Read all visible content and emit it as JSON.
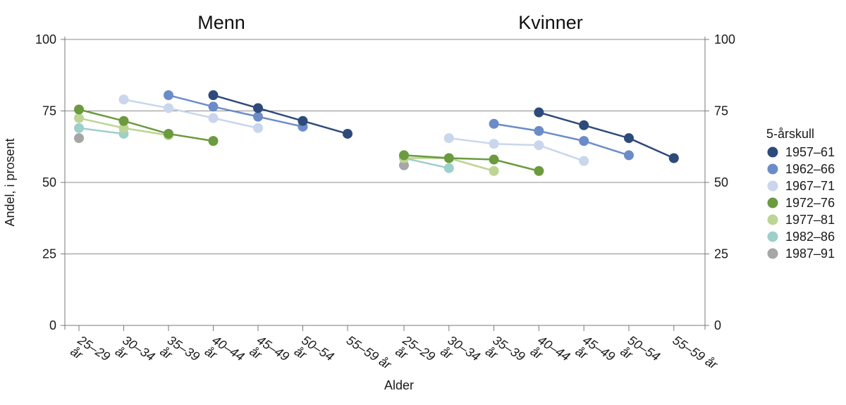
{
  "chart_data": {
    "type": "line",
    "panels": [
      {
        "title": "Menn"
      },
      {
        "title": "Kvinner"
      }
    ],
    "categories": [
      "25–29 år",
      "30–34 år",
      "35–39 år",
      "40–44 år",
      "45–49 år",
      "50–54 år",
      "55–59 år"
    ],
    "category_lines": [
      [
        "25–29",
        "år"
      ],
      [
        "30–34",
        "år"
      ],
      [
        "35–39",
        "år"
      ],
      [
        "40–44",
        "år"
      ],
      [
        "45–49",
        "år"
      ],
      [
        "50–54",
        "år"
      ],
      [
        "55–59 år",
        ""
      ]
    ],
    "xlabel": "Alder",
    "ylabel": "Andel, i prosent",
    "ylim": [
      0,
      100
    ],
    "yticks": [
      0,
      25,
      50,
      75,
      100
    ],
    "grid": true,
    "legend": {
      "title": "5-årskull",
      "position": "right"
    },
    "series": [
      {
        "name": "1957–61",
        "color": "#2d4a7a",
        "menn": [
          null,
          null,
          null,
          80.5,
          76,
          71.5,
          67
        ],
        "kvinner": [
          null,
          null,
          null,
          74.5,
          70,
          65.5,
          58.5
        ]
      },
      {
        "name": "1962–66",
        "color": "#6b8cc8",
        "menn": [
          null,
          null,
          80.5,
          76.5,
          73,
          69.5,
          null
        ],
        "kvinner": [
          null,
          null,
          70.5,
          68,
          64.5,
          59.5,
          null
        ]
      },
      {
        "name": "1967–71",
        "color": "#c9d6ec",
        "menn": [
          null,
          79,
          76,
          72.5,
          69,
          null,
          null
        ],
        "kvinner": [
          null,
          65.5,
          63.5,
          63,
          57.5,
          null,
          null
        ]
      },
      {
        "name": "1972–76",
        "color": "#6b9a3f",
        "menn": [
          75.5,
          71.5,
          67,
          64.5,
          null,
          null,
          null
        ],
        "kvinner": [
          59.5,
          58.5,
          58,
          54,
          null,
          null,
          null
        ]
      },
      {
        "name": "1977–81",
        "color": "#bcd595",
        "menn": [
          72.5,
          69,
          66.5,
          null,
          null,
          null,
          null
        ],
        "kvinner": [
          58.5,
          58.5,
          54,
          null,
          null,
          null,
          null
        ]
      },
      {
        "name": "1982–86",
        "color": "#9ecfcb",
        "menn": [
          69,
          67,
          null,
          null,
          null,
          null,
          null
        ],
        "kvinner": [
          58.5,
          55,
          null,
          null,
          null,
          null,
          null
        ]
      },
      {
        "name": "1987–91",
        "color": "#a6a6a6",
        "menn": [
          65.5,
          null,
          null,
          null,
          null,
          null,
          null
        ],
        "kvinner": [
          56,
          null,
          null,
          null,
          null,
          null,
          null
        ]
      }
    ]
  }
}
